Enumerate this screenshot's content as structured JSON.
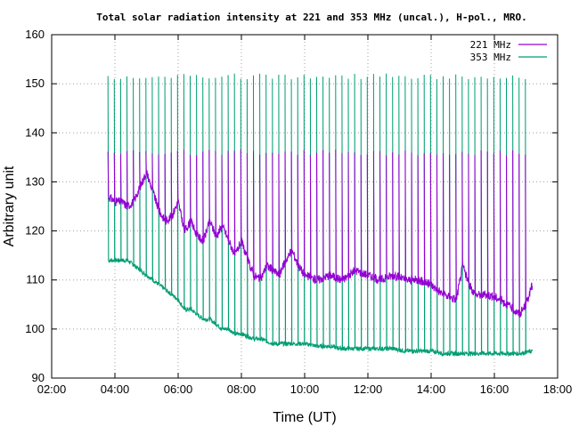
{
  "chart_data": {
    "type": "line",
    "title": "Total solar radiation intensity at 221 and 353 MHz (uncal.), H-pol., MRO.",
    "xlabel": "Time (UT)",
    "ylabel": "Arbitrary unit",
    "xlim_hours": [
      2,
      18
    ],
    "ylim": [
      90,
      160
    ],
    "x_tick_labels": [
      "02:00",
      "04:00",
      "06:00",
      "08:00",
      "10:00",
      "12:00",
      "14:00",
      "16:00",
      "18:00"
    ],
    "y_tick_labels": [
      "90",
      "100",
      "110",
      "120",
      "130",
      "140",
      "150",
      "160"
    ],
    "grid": true,
    "legend_position": "top-right",
    "calibration_spikes": {
      "start_hour": 3.78,
      "interval_hour": 0.2,
      "count": 67,
      "peak_353": 151.5,
      "peak_221": 136
    },
    "series": [
      {
        "name": "221 MHz",
        "color": "#9400d3",
        "x_hours": [
          3.8,
          4.0,
          4.2,
          4.4,
          4.6,
          4.8,
          5.0,
          5.2,
          5.4,
          5.6,
          5.8,
          6.0,
          6.2,
          6.4,
          6.6,
          6.8,
          7.0,
          7.2,
          7.4,
          7.6,
          7.8,
          8.0,
          8.2,
          8.4,
          8.6,
          8.8,
          9.0,
          9.2,
          9.4,
          9.6,
          9.8,
          10.0,
          10.4,
          10.8,
          11.2,
          11.6,
          12.0,
          12.4,
          12.8,
          13.2,
          13.6,
          14.0,
          14.4,
          14.8,
          15.0,
          15.2,
          15.4,
          15.8,
          16.2,
          16.6,
          16.8,
          17.0,
          17.2
        ],
        "values": [
          127,
          126,
          126,
          125,
          126,
          129,
          132,
          128,
          124,
          122,
          123,
          126,
          120,
          122,
          119,
          118,
          122,
          119,
          121,
          118,
          115,
          118,
          114,
          111,
          110,
          113,
          112,
          111,
          114,
          116,
          113,
          111,
          110,
          111,
          110,
          112,
          111,
          110,
          111,
          110,
          110,
          109,
          107,
          106,
          113,
          109,
          107,
          107,
          106,
          104,
          103,
          105,
          109
        ]
      },
      {
        "name": "353 MHz",
        "color": "#009e73",
        "x_hours": [
          3.8,
          4.0,
          4.2,
          4.4,
          4.6,
          4.8,
          5.0,
          5.2,
          5.4,
          5.6,
          5.8,
          6.0,
          6.2,
          6.4,
          6.6,
          6.8,
          7.0,
          7.2,
          7.4,
          7.6,
          7.8,
          8.0,
          8.2,
          8.4,
          8.6,
          8.8,
          9.0,
          9.2,
          9.4,
          9.6,
          9.8,
          10.0,
          10.4,
          10.8,
          11.2,
          11.6,
          12.0,
          12.4,
          12.8,
          13.2,
          13.6,
          14.0,
          14.4,
          14.8,
          15.2,
          15.6,
          16.0,
          16.4,
          16.8,
          17.2
        ],
        "values": [
          114,
          114,
          114,
          114,
          113,
          112,
          111,
          110,
          109,
          108,
          107,
          106,
          104,
          104,
          103,
          102,
          102,
          101,
          100,
          100,
          99,
          99,
          98.5,
          98,
          98,
          97.5,
          97,
          97,
          97,
          97,
          97,
          97,
          96.5,
          96.5,
          96,
          96,
          96,
          96,
          96,
          95.5,
          95.5,
          95.5,
          95,
          95,
          95,
          95,
          95,
          95,
          95,
          95.5
        ]
      }
    ]
  }
}
